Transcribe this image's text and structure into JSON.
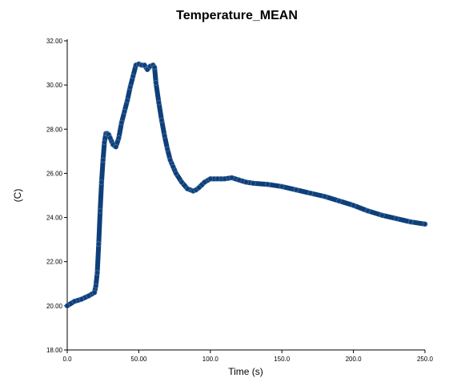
{
  "chart_data": {
    "type": "line",
    "title": "Temperature_MEAN",
    "xlabel": "Time (s)",
    "ylabel": "(C)",
    "xlim": [
      0,
      250
    ],
    "ylim": [
      18,
      32
    ],
    "x_ticks": [
      0,
      50,
      100,
      150,
      200,
      250
    ],
    "x_tick_labels": [
      "0.0",
      "50.00",
      "100.0",
      "150.0",
      "200.0",
      "250.0"
    ],
    "y_ticks": [
      18,
      20,
      22,
      24,
      26,
      28,
      30,
      32
    ],
    "y_tick_labels": [
      "18.00",
      "20.00",
      "22.00",
      "24.00",
      "26.00",
      "28.00",
      "30.00",
      "32.00"
    ],
    "grid": false,
    "legend": "none",
    "series_color": "#0d3f7a",
    "series": [
      {
        "x": [
          0,
          5,
          10,
          15,
          19,
          20,
          21,
          22,
          23,
          24,
          25,
          26,
          27,
          28,
          29,
          30,
          32,
          34,
          36,
          38,
          40,
          42,
          44,
          46,
          48,
          50,
          52,
          54,
          56,
          58,
          60,
          61,
          62,
          64,
          66,
          68,
          70,
          72,
          74,
          76,
          80,
          84,
          88,
          90,
          92,
          96,
          100,
          105,
          110,
          115,
          120,
          125,
          130,
          140,
          150,
          160,
          170,
          180,
          190,
          200,
          210,
          220,
          230,
          240,
          250
        ],
        "y": [
          20.0,
          20.2,
          20.3,
          20.45,
          20.6,
          20.9,
          21.5,
          22.8,
          24.3,
          25.6,
          26.6,
          27.4,
          27.8,
          27.8,
          27.75,
          27.6,
          27.3,
          27.2,
          27.6,
          28.3,
          28.8,
          29.3,
          29.9,
          30.4,
          30.9,
          30.95,
          30.9,
          30.9,
          30.7,
          30.85,
          30.9,
          30.8,
          30.1,
          29.2,
          28.4,
          27.7,
          27.1,
          26.6,
          26.3,
          26.0,
          25.6,
          25.3,
          25.2,
          25.25,
          25.35,
          25.6,
          25.75,
          25.75,
          25.75,
          25.8,
          25.7,
          25.6,
          25.55,
          25.5,
          25.4,
          25.25,
          25.1,
          24.95,
          24.75,
          24.55,
          24.3,
          24.1,
          23.95,
          23.8,
          23.7
        ]
      }
    ]
  }
}
